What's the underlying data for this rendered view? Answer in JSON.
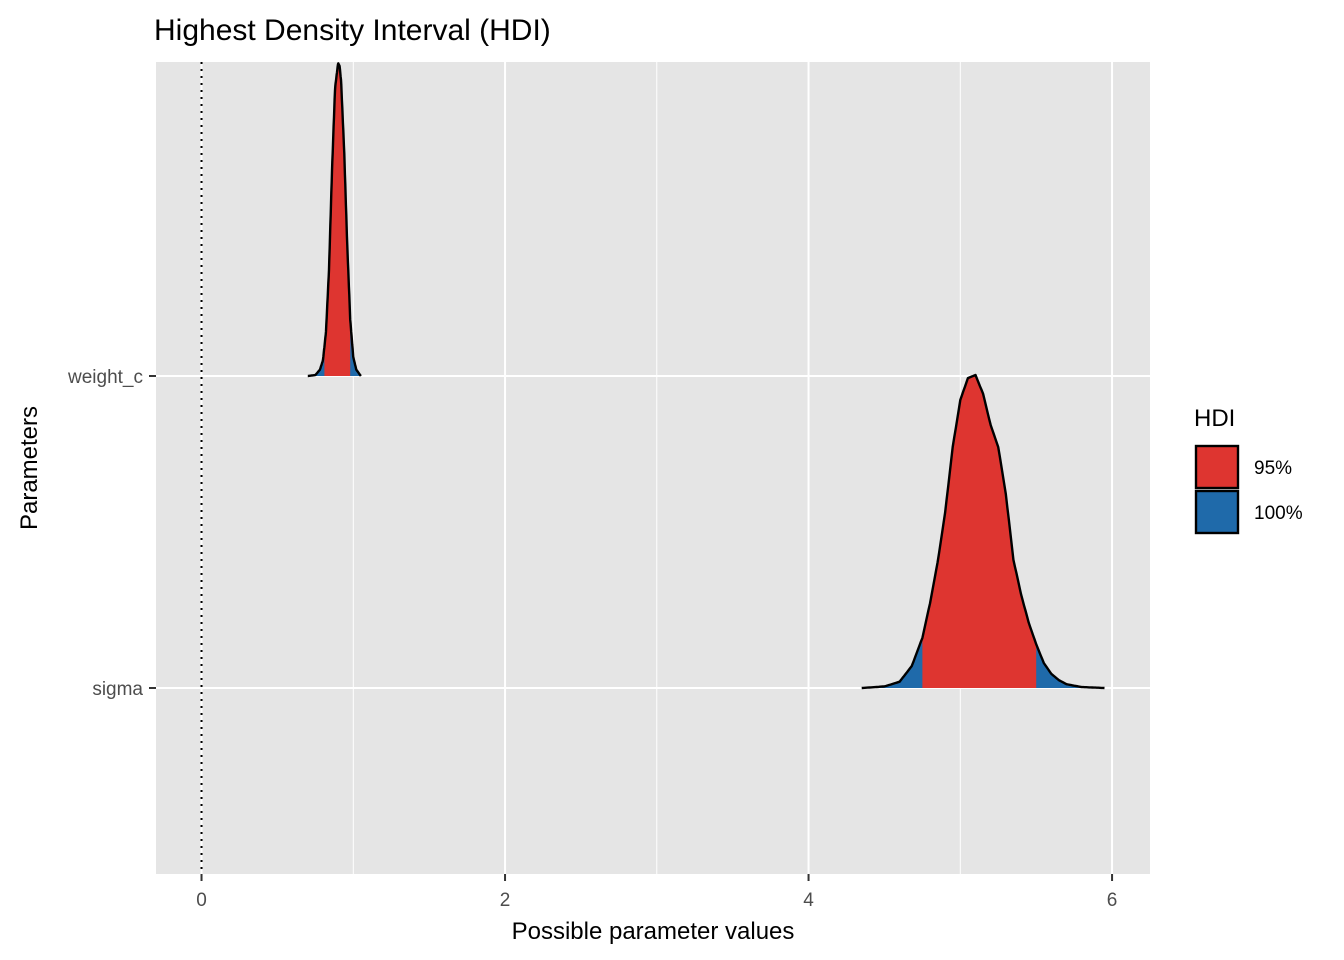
{
  "chart_data": {
    "type": "area",
    "title": "Highest Density Interval (HDI)",
    "xlabel": "Possible parameter values",
    "ylabel": "Parameters",
    "xlim": [
      -0.3,
      6.25
    ],
    "x_ticks": [
      "0",
      "2",
      "4",
      "6"
    ],
    "x_tick_values": [
      0,
      2,
      4,
      6
    ],
    "categories": [
      "weight_c",
      "sigma"
    ],
    "reference_line": {
      "x": 0,
      "style": "dotted"
    },
    "grid": true,
    "legend": {
      "title": "HDI",
      "position": "right",
      "entries": [
        {
          "label": "95%",
          "color": "#DE3530"
        },
        {
          "label": "100%",
          "color": "#1F6AAA"
        }
      ]
    },
    "series": [
      {
        "name": "weight_c",
        "x": [
          0.7,
          0.75,
          0.78,
          0.8,
          0.82,
          0.84,
          0.86,
          0.88,
          0.9,
          0.91,
          0.92,
          0.94,
          0.96,
          0.98,
          1.0,
          1.02,
          1.05
        ],
        "density": [
          0.0,
          0.003,
          0.02,
          0.05,
          0.14,
          0.34,
          0.66,
          0.92,
          1.0,
          0.99,
          0.94,
          0.72,
          0.42,
          0.18,
          0.06,
          0.02,
          0.0
        ],
        "hdi95": [
          0.81,
          0.98
        ],
        "hdi100": [
          0.7,
          1.05
        ]
      },
      {
        "name": "sigma",
        "x": [
          4.35,
          4.5,
          4.6,
          4.68,
          4.75,
          4.8,
          4.85,
          4.9,
          4.95,
          5.0,
          5.05,
          5.1,
          5.15,
          5.2,
          5.25,
          5.3,
          5.35,
          5.4,
          5.45,
          5.5,
          5.55,
          5.6,
          5.65,
          5.7,
          5.8,
          5.95
        ],
        "density": [
          0.0,
          0.005,
          0.02,
          0.07,
          0.16,
          0.27,
          0.4,
          0.56,
          0.77,
          0.92,
          0.99,
          1.0,
          0.94,
          0.84,
          0.77,
          0.62,
          0.41,
          0.3,
          0.21,
          0.14,
          0.08,
          0.045,
          0.025,
          0.012,
          0.003,
          0.0
        ],
        "hdi95": [
          4.75,
          5.5
        ],
        "hdi100": [
          4.35,
          5.95
        ]
      }
    ]
  }
}
